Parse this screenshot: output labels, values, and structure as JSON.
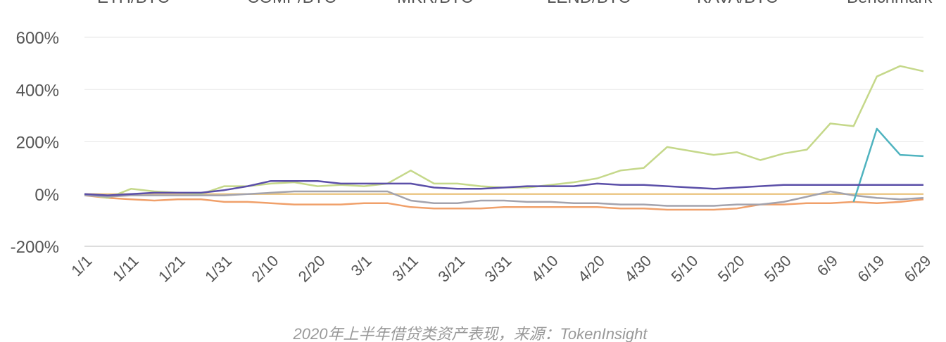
{
  "chart_data": {
    "type": "line",
    "caption": "2020年上半年借贷类资产表现，来源：TokenInsight",
    "categories": [
      "1/1",
      null,
      "1/11",
      null,
      "1/21",
      null,
      "1/31",
      null,
      "2/10",
      null,
      "2/20",
      null,
      "3/1",
      null,
      "3/11",
      null,
      "3/21",
      null,
      "3/31",
      null,
      "4/10",
      null,
      "4/20",
      null,
      "4/30",
      null,
      "5/10",
      null,
      "5/20",
      null,
      "5/30",
      null,
      "6/9",
      null,
      "6/19",
      null,
      "6/29"
    ],
    "ylim": [
      -200,
      600
    ],
    "yticks": [
      {
        "value": -200,
        "label": "-200%"
      },
      {
        "value": 0,
        "label": "0%"
      },
      {
        "value": 200,
        "label": "200%"
      },
      {
        "value": 400,
        "label": "400%"
      },
      {
        "value": 600,
        "label": "600%"
      }
    ],
    "grid": true,
    "series": [
      {
        "name": "ETH/BTC",
        "color": "#5b4fa8",
        "values": [
          0,
          -5,
          0,
          5,
          5,
          5,
          15,
          30,
          50,
          50,
          50,
          40,
          40,
          40,
          40,
          25,
          20,
          20,
          25,
          30,
          30,
          30,
          40,
          35,
          35,
          30,
          25,
          20,
          25,
          30,
          35,
          35,
          35,
          35,
          35,
          35,
          35
        ]
      },
      {
        "name": "COMP/BTC",
        "color": "#4fb3bf",
        "values": [
          null,
          null,
          null,
          null,
          null,
          null,
          null,
          null,
          null,
          null,
          null,
          null,
          null,
          null,
          null,
          null,
          null,
          null,
          null,
          null,
          null,
          null,
          null,
          null,
          null,
          null,
          null,
          null,
          null,
          null,
          null,
          null,
          null,
          -30,
          250,
          150,
          145
        ]
      },
      {
        "name": "MKR/BTC",
        "color": "#a3a3ad",
        "values": [
          -5,
          -10,
          -5,
          -5,
          -5,
          -5,
          -5,
          0,
          5,
          10,
          10,
          10,
          10,
          10,
          -25,
          -35,
          -35,
          -25,
          -25,
          -30,
          -30,
          -35,
          -35,
          -40,
          -40,
          -45,
          -45,
          -45,
          -40,
          -40,
          -30,
          -10,
          10,
          -5,
          -15,
          -20,
          -15
        ]
      },
      {
        "name": "LEND/BTC",
        "color": "#c5d88a",
        "values": [
          0,
          -15,
          20,
          10,
          5,
          0,
          30,
          30,
          40,
          45,
          30,
          35,
          30,
          40,
          90,
          40,
          40,
          30,
          25,
          25,
          35,
          45,
          60,
          90,
          100,
          180,
          165,
          150,
          160,
          130,
          155,
          170,
          270,
          260,
          450,
          490,
          470
        ]
      },
      {
        "name": "KAVA/BTC",
        "color": "#f0a06a",
        "values": [
          -5,
          -15,
          -20,
          -25,
          -20,
          -20,
          -30,
          -30,
          -35,
          -40,
          -40,
          -40,
          -35,
          -35,
          -50,
          -55,
          -55,
          -55,
          -50,
          -50,
          -50,
          -50,
          -50,
          -55,
          -55,
          -60,
          -60,
          -60,
          -55,
          -40,
          -40,
          -35,
          -35,
          -30,
          -35,
          -30,
          -20
        ]
      },
      {
        "name": "Benchmark",
        "color": "#ecc98a",
        "values": [
          0,
          0,
          0,
          0,
          0,
          0,
          0,
          0,
          0,
          0,
          0,
          0,
          0,
          0,
          0,
          0,
          0,
          0,
          0,
          0,
          0,
          0,
          0,
          0,
          0,
          0,
          0,
          0,
          0,
          0,
          0,
          0,
          0,
          0,
          0,
          0,
          0
        ]
      }
    ]
  }
}
